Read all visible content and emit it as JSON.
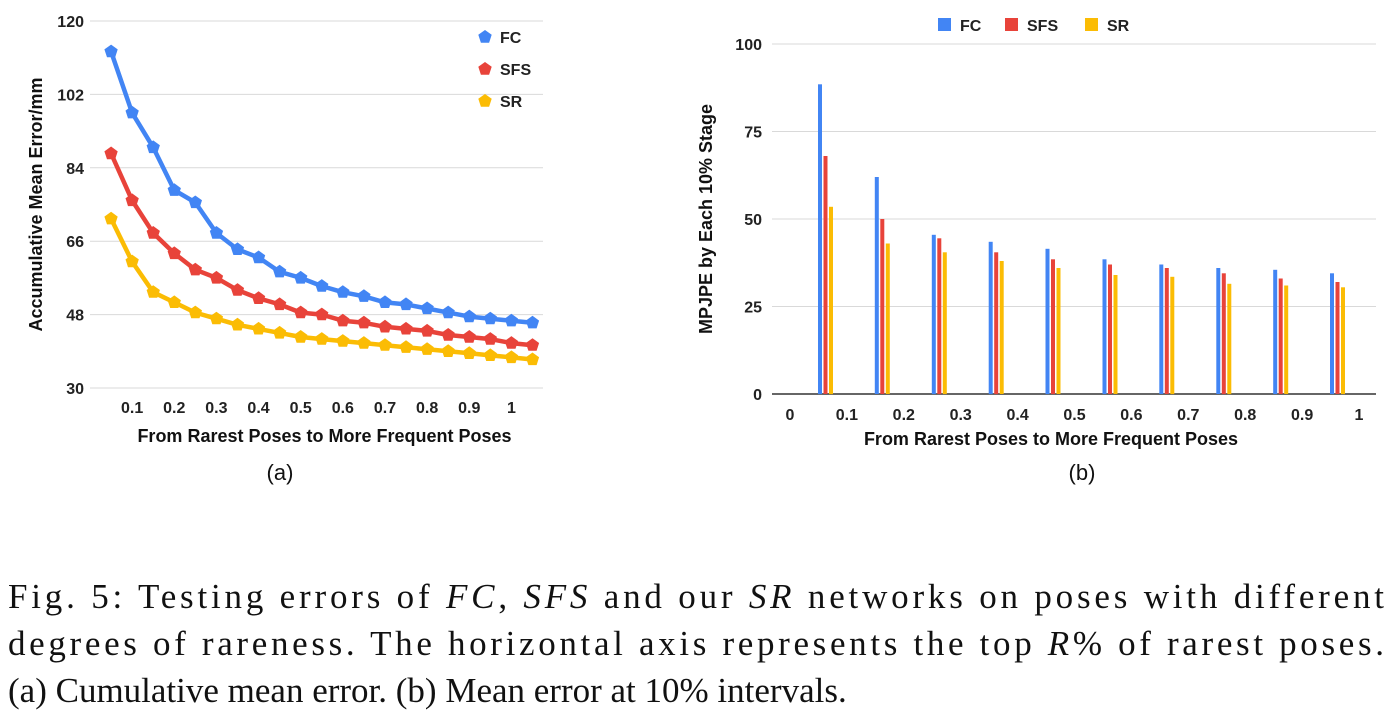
{
  "colors": {
    "FC": "#4285f4",
    "SFS": "#e8433a",
    "SR": "#fbbc04",
    "grid": "#d9d9d9",
    "axis": "#333333"
  },
  "caption": {
    "lines": [
      [
        {
          "t": "Fig. 5: Testing errors of ",
          "i": false
        },
        {
          "t": "FC",
          "i": true
        },
        {
          "t": ", ",
          "i": false
        },
        {
          "t": "SFS",
          "i": true
        },
        {
          "t": " and our ",
          "i": false
        },
        {
          "t": "SR",
          "i": true
        },
        {
          "t": " networks on poses with different",
          "i": false
        }
      ],
      [
        {
          "t": "degrees of rareness. The horizontal axis represents the top ",
          "i": false
        },
        {
          "t": "R",
          "i": true
        },
        {
          "t": "% of rarest poses.",
          "i": false
        }
      ],
      [
        {
          "t": "(a) Cumulative mean error. (b) Mean error at 10% intervals.",
          "i": false
        }
      ]
    ]
  },
  "chart_data": [
    {
      "panel_label": "(a)",
      "type": "line",
      "xlabel": "From Rarest Poses to More Frequent Poses",
      "ylabel": "Accumulative Mean Error/mm",
      "ylim": [
        30,
        120
      ],
      "yticks": [
        30,
        48,
        66,
        84,
        102,
        120
      ],
      "xlim": [
        0.0,
        1.075
      ],
      "xticks": [
        0.1,
        0.2,
        0.3,
        0.4,
        0.5,
        0.6,
        0.7,
        0.8,
        0.9,
        1
      ],
      "grid": true,
      "legend_position": "top-right",
      "x": [
        0.05,
        0.1,
        0.15,
        0.2,
        0.25,
        0.3,
        0.35,
        0.4,
        0.45,
        0.5,
        0.55,
        0.6,
        0.65,
        0.7,
        0.75,
        0.8,
        0.85,
        0.9,
        0.95,
        1.0,
        1.05
      ],
      "series": [
        {
          "name": "FC",
          "values": [
            112.5,
            97.5,
            89,
            78.5,
            75.5,
            68,
            64,
            62,
            58.5,
            57,
            55,
            53.5,
            52.5,
            51,
            50.5,
            49.5,
            48.5,
            47.5,
            47,
            46.5,
            46
          ]
        },
        {
          "name": "SFS",
          "values": [
            87.5,
            76,
            68,
            63,
            59,
            57,
            54,
            52,
            50.5,
            48.5,
            48,
            46.5,
            46,
            45,
            44.5,
            44,
            43,
            42.5,
            42,
            41,
            40.5
          ]
        },
        {
          "name": "SR",
          "values": [
            71.5,
            61,
            53.5,
            51,
            48.5,
            47,
            45.5,
            44.5,
            43.5,
            42.5,
            42,
            41.5,
            41,
            40.5,
            40,
            39.5,
            39,
            38.5,
            38,
            37.5,
            37
          ]
        }
      ]
    },
    {
      "panel_label": "(b)",
      "type": "bar",
      "xlabel": "From Rarest Poses to More Frequent Poses",
      "ylabel": "MPJPE  by Each 10% Stage",
      "ylim": [
        0,
        100
      ],
      "yticks": [
        0,
        25,
        50,
        75,
        100
      ],
      "xticks": [
        "0",
        "0.1",
        "0.2",
        "0.3",
        "0.4",
        "0.5",
        "0.6",
        "0.7",
        "0.8",
        "0.9",
        "1"
      ],
      "grid": true,
      "legend_position": "top",
      "categories": [
        "0-0.1",
        "0.1-0.2",
        "0.2-0.3",
        "0.3-0.4",
        "0.4-0.5",
        "0.5-0.6",
        "0.6-0.7",
        "0.7-0.8",
        "0.8-0.9",
        "0.9-1"
      ],
      "series": [
        {
          "name": "FC",
          "values": [
            88.5,
            62,
            45.5,
            43.5,
            41.5,
            38.5,
            37,
            36,
            35.5,
            34.5
          ]
        },
        {
          "name": "SFS",
          "values": [
            68,
            50,
            44.5,
            40.5,
            38.5,
            37,
            36,
            34.5,
            33,
            32
          ]
        },
        {
          "name": "SR",
          "values": [
            53.5,
            43,
            40.5,
            38,
            36,
            34,
            33.5,
            31.5,
            31,
            30.5
          ]
        }
      ]
    }
  ]
}
